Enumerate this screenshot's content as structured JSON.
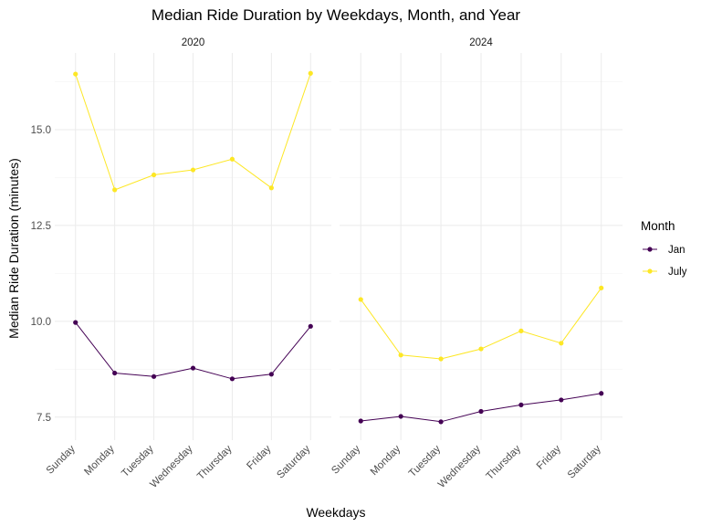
{
  "chart_data": {
    "type": "line",
    "title": "Median Ride Duration by Weekdays, Month, and Year",
    "xlabel": "Weekdays",
    "ylabel": "Median Ride Duration (minutes)",
    "categories": [
      "Sunday",
      "Monday",
      "Tuesday",
      "Wednesday",
      "Thursday",
      "Friday",
      "Saturday"
    ],
    "ylim": [
      6.9,
      17.0
    ],
    "yticks": [
      7.5,
      10.0,
      12.5,
      15.0
    ],
    "ytick_labels": [
      "7.5",
      "10.0",
      "12.5",
      "15.0"
    ],
    "grid": true,
    "legend": {
      "title": "Month",
      "position": "right",
      "entries": [
        "Jan",
        "July"
      ]
    },
    "series_colors": {
      "Jan": "#440154",
      "July": "#FDE725"
    },
    "facets": [
      {
        "label": "2020",
        "series": [
          {
            "name": "Jan",
            "values": [
              9.97,
              8.65,
              8.56,
              8.78,
              8.5,
              8.62,
              9.87
            ]
          },
          {
            "name": "July",
            "values": [
              16.45,
              13.43,
              13.82,
              13.95,
              14.23,
              13.48,
              16.47
            ]
          }
        ]
      },
      {
        "label": "2024",
        "series": [
          {
            "name": "Jan",
            "values": [
              7.4,
              7.52,
              7.38,
              7.65,
              7.82,
              7.95,
              8.12
            ]
          },
          {
            "name": "July",
            "values": [
              10.57,
              9.12,
              9.02,
              9.28,
              9.75,
              9.43,
              10.87
            ]
          }
        ]
      }
    ]
  }
}
